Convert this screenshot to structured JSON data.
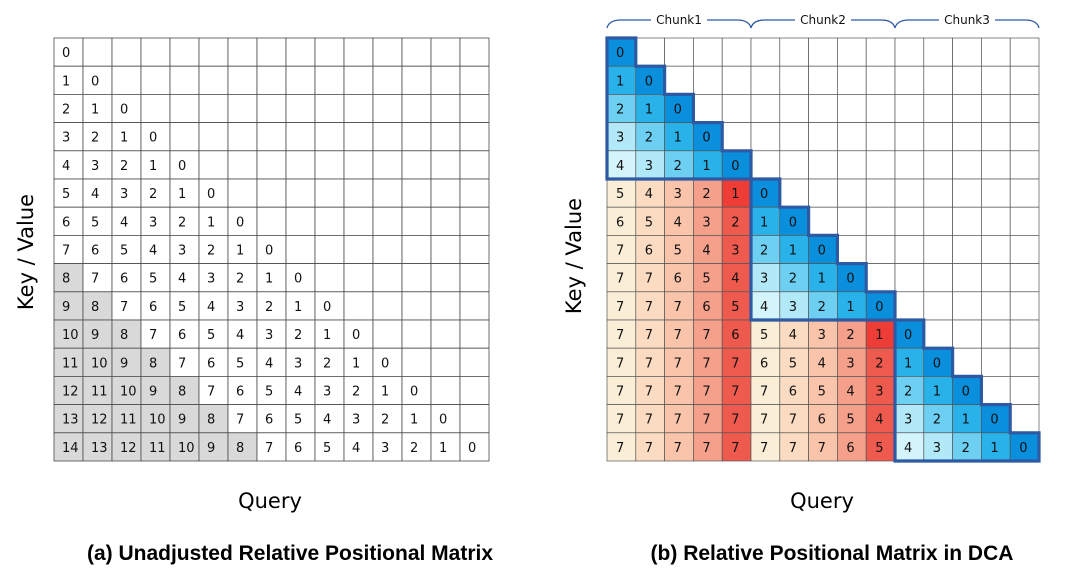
{
  "panel_a": {
    "y_axis_label": "Key / Value",
    "x_axis_label": "Query",
    "caption": "(a) Unadjusted Relative Positional Matrix",
    "size": 15,
    "shaded_threshold": 8
  },
  "panel_b": {
    "y_axis_label": "Key / Value",
    "x_axis_label": "Query",
    "caption": "(b) Relative Positional Matrix in DCA",
    "size": 15,
    "chunk_size": 5,
    "chunks": [
      "Chunk1",
      "Chunk2",
      "Chunk3"
    ],
    "colors": {
      "intra_chunk": [
        "#0a8fdc",
        "#29b2ea",
        "#6dd0f2",
        "#b2e9f8",
        "#d4f4fb"
      ],
      "inter_chunk_far": [
        "#fbeed7",
        "#fbdcc2",
        "#f9c4aa",
        "#f4a08b",
        "#ee5b4e"
      ],
      "diagonal_one": "#ee3d36",
      "chunk_border": "#2e5aa3"
    }
  }
}
